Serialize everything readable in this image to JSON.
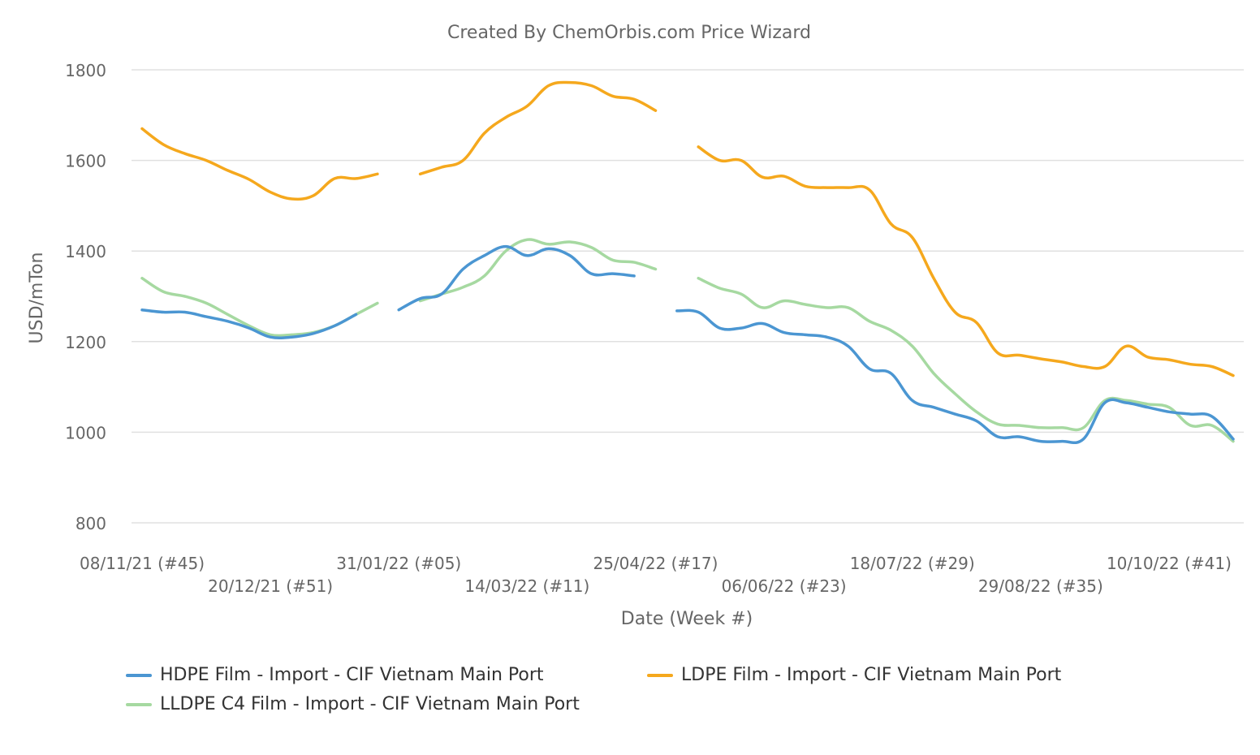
{
  "chart_data": {
    "type": "line",
    "title": "Created By ChemOrbis.com Price Wizard",
    "xlabel": "Date (Week #)",
    "ylabel": "USD/mTon",
    "ylim": [
      750,
      1820
    ],
    "yticks": [
      800,
      1000,
      1200,
      1400,
      1600,
      1800
    ],
    "grid": true,
    "legend_position": "bottom",
    "x_count": 52,
    "x_tick_labels": [
      {
        "index": 0,
        "label": "08/11/21 (#45)"
      },
      {
        "index": 6,
        "label": "20/12/21 (#51)"
      },
      {
        "index": 12,
        "label": "31/01/22 (#05)"
      },
      {
        "index": 18,
        "label": "14/03/22 (#11)"
      },
      {
        "index": 24,
        "label": "25/04/22 (#17)"
      },
      {
        "index": 30,
        "label": "06/06/22 (#23)"
      },
      {
        "index": 36,
        "label": "18/07/22 (#29)"
      },
      {
        "index": 42,
        "label": "29/08/22 (#35)"
      },
      {
        "index": 48,
        "label": "10/10/22 (#41)"
      }
    ],
    "series": [
      {
        "name": "HDPE Film - Import - CIF Vietnam Main Port",
        "color": "#4b96d2",
        "values": [
          1270,
          1265,
          1265,
          1255,
          1245,
          1230,
          1210,
          1210,
          1218,
          1235,
          1260,
          null,
          1270,
          1295,
          1305,
          1360,
          1390,
          1410,
          1390,
          1405,
          1390,
          1350,
          1350,
          1345,
          null,
          1268,
          1265,
          1230,
          1230,
          1240,
          1220,
          1215,
          1210,
          1190,
          1140,
          1130,
          1070,
          1055,
          1040,
          1025,
          990,
          990,
          980,
          980,
          985,
          1065,
          1065,
          1055,
          1045,
          1040,
          1035,
          985
        ]
      },
      {
        "name": "LDPE Film - Import - CIF Vietnam Main Port",
        "color": "#f5a81d",
        "values": [
          1670,
          1635,
          1615,
          1600,
          1578,
          1558,
          1530,
          1515,
          1522,
          1560,
          1560,
          1570,
          null,
          1570,
          1585,
          1600,
          1660,
          1695,
          1720,
          1765,
          1772,
          1765,
          1742,
          1735,
          1710,
          null,
          1630,
          1600,
          1600,
          1563,
          1565,
          1543,
          1540,
          1540,
          1535,
          1460,
          1430,
          1340,
          1265,
          1242,
          1175,
          1170,
          1162,
          1155,
          1145,
          1145,
          1190,
          1166,
          1160,
          1150,
          1145,
          1125
        ]
      },
      {
        "name": "LLDPE C4 Film - Import - CIF Vietnam Main Port",
        "color": "#a6d9a1",
        "values": [
          1340,
          1310,
          1300,
          1285,
          1260,
          1235,
          1215,
          1215,
          1220,
          1235,
          1260,
          1285,
          null,
          1290,
          1305,
          1320,
          1345,
          1400,
          1425,
          1415,
          1420,
          1408,
          1380,
          1375,
          1360,
          null,
          1340,
          1318,
          1305,
          1275,
          1290,
          1282,
          1275,
          1275,
          1245,
          1225,
          1190,
          1130,
          1085,
          1045,
          1018,
          1015,
          1010,
          1010,
          1010,
          1070,
          1070,
          1062,
          1055,
          1015,
          1015,
          980
        ]
      }
    ]
  }
}
